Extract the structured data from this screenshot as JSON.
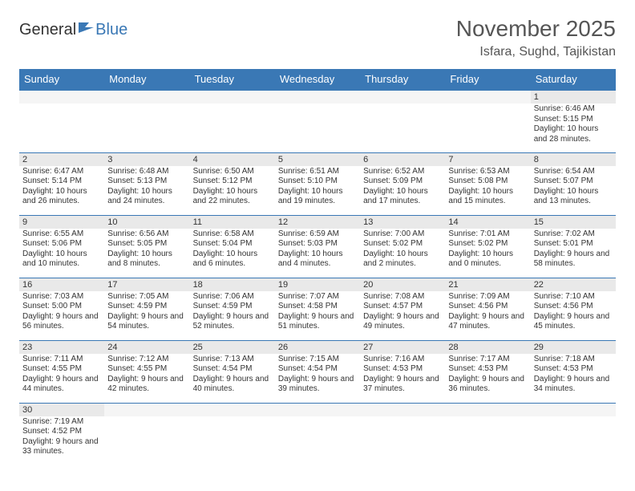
{
  "logo": {
    "part1": "General",
    "part2": "Blue"
  },
  "title": "November 2025",
  "location": "Isfara, Sughd, Tajikistan",
  "colors": {
    "header_bg": "#3a78b5",
    "header_fg": "#ffffff",
    "daynum_bg": "#e9e9e9",
    "row_border": "#3a78b5",
    "background": "#ffffff",
    "text": "#333333",
    "logo_blue": "#3a78b5"
  },
  "weekdays": [
    "Sunday",
    "Monday",
    "Tuesday",
    "Wednesday",
    "Thursday",
    "Friday",
    "Saturday"
  ],
  "first_weekday_index": 6,
  "days": [
    {
      "n": 1,
      "sunrise": "6:46 AM",
      "sunset": "5:15 PM",
      "daylight": "10 hours and 28 minutes."
    },
    {
      "n": 2,
      "sunrise": "6:47 AM",
      "sunset": "5:14 PM",
      "daylight": "10 hours and 26 minutes."
    },
    {
      "n": 3,
      "sunrise": "6:48 AM",
      "sunset": "5:13 PM",
      "daylight": "10 hours and 24 minutes."
    },
    {
      "n": 4,
      "sunrise": "6:50 AM",
      "sunset": "5:12 PM",
      "daylight": "10 hours and 22 minutes."
    },
    {
      "n": 5,
      "sunrise": "6:51 AM",
      "sunset": "5:10 PM",
      "daylight": "10 hours and 19 minutes."
    },
    {
      "n": 6,
      "sunrise": "6:52 AM",
      "sunset": "5:09 PM",
      "daylight": "10 hours and 17 minutes."
    },
    {
      "n": 7,
      "sunrise": "6:53 AM",
      "sunset": "5:08 PM",
      "daylight": "10 hours and 15 minutes."
    },
    {
      "n": 8,
      "sunrise": "6:54 AM",
      "sunset": "5:07 PM",
      "daylight": "10 hours and 13 minutes."
    },
    {
      "n": 9,
      "sunrise": "6:55 AM",
      "sunset": "5:06 PM",
      "daylight": "10 hours and 10 minutes."
    },
    {
      "n": 10,
      "sunrise": "6:56 AM",
      "sunset": "5:05 PM",
      "daylight": "10 hours and 8 minutes."
    },
    {
      "n": 11,
      "sunrise": "6:58 AM",
      "sunset": "5:04 PM",
      "daylight": "10 hours and 6 minutes."
    },
    {
      "n": 12,
      "sunrise": "6:59 AM",
      "sunset": "5:03 PM",
      "daylight": "10 hours and 4 minutes."
    },
    {
      "n": 13,
      "sunrise": "7:00 AM",
      "sunset": "5:02 PM",
      "daylight": "10 hours and 2 minutes."
    },
    {
      "n": 14,
      "sunrise": "7:01 AM",
      "sunset": "5:02 PM",
      "daylight": "10 hours and 0 minutes."
    },
    {
      "n": 15,
      "sunrise": "7:02 AM",
      "sunset": "5:01 PM",
      "daylight": "9 hours and 58 minutes."
    },
    {
      "n": 16,
      "sunrise": "7:03 AM",
      "sunset": "5:00 PM",
      "daylight": "9 hours and 56 minutes."
    },
    {
      "n": 17,
      "sunrise": "7:05 AM",
      "sunset": "4:59 PM",
      "daylight": "9 hours and 54 minutes."
    },
    {
      "n": 18,
      "sunrise": "7:06 AM",
      "sunset": "4:59 PM",
      "daylight": "9 hours and 52 minutes."
    },
    {
      "n": 19,
      "sunrise": "7:07 AM",
      "sunset": "4:58 PM",
      "daylight": "9 hours and 51 minutes."
    },
    {
      "n": 20,
      "sunrise": "7:08 AM",
      "sunset": "4:57 PM",
      "daylight": "9 hours and 49 minutes."
    },
    {
      "n": 21,
      "sunrise": "7:09 AM",
      "sunset": "4:56 PM",
      "daylight": "9 hours and 47 minutes."
    },
    {
      "n": 22,
      "sunrise": "7:10 AM",
      "sunset": "4:56 PM",
      "daylight": "9 hours and 45 minutes."
    },
    {
      "n": 23,
      "sunrise": "7:11 AM",
      "sunset": "4:55 PM",
      "daylight": "9 hours and 44 minutes."
    },
    {
      "n": 24,
      "sunrise": "7:12 AM",
      "sunset": "4:55 PM",
      "daylight": "9 hours and 42 minutes."
    },
    {
      "n": 25,
      "sunrise": "7:13 AM",
      "sunset": "4:54 PM",
      "daylight": "9 hours and 40 minutes."
    },
    {
      "n": 26,
      "sunrise": "7:15 AM",
      "sunset": "4:54 PM",
      "daylight": "9 hours and 39 minutes."
    },
    {
      "n": 27,
      "sunrise": "7:16 AM",
      "sunset": "4:53 PM",
      "daylight": "9 hours and 37 minutes."
    },
    {
      "n": 28,
      "sunrise": "7:17 AM",
      "sunset": "4:53 PM",
      "daylight": "9 hours and 36 minutes."
    },
    {
      "n": 29,
      "sunrise": "7:18 AM",
      "sunset": "4:53 PM",
      "daylight": "9 hours and 34 minutes."
    },
    {
      "n": 30,
      "sunrise": "7:19 AM",
      "sunset": "4:52 PM",
      "daylight": "9 hours and 33 minutes."
    }
  ],
  "labels": {
    "sunrise": "Sunrise: ",
    "sunset": "Sunset: ",
    "daylight": "Daylight: "
  }
}
